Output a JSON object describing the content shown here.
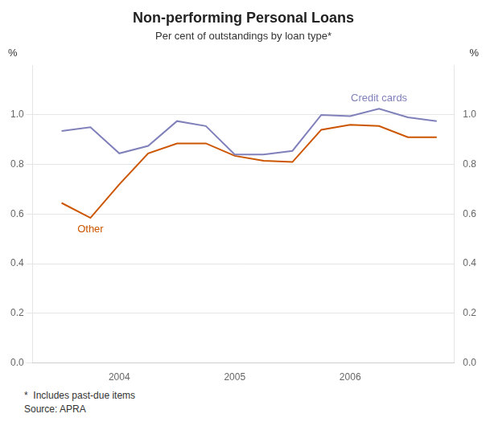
{
  "chart_data": {
    "type": "line",
    "title": "Non-performing Personal Loans",
    "subtitle": "Per cent of outstandings by loan type*",
    "footnotes": [
      "*  Includes past-due items",
      "Source: APRA"
    ],
    "y_label": "%",
    "y2_label": "%",
    "x": [
      2003.5,
      2003.75,
      2004.0,
      2004.25,
      2004.5,
      2004.75,
      2005.0,
      2005.25,
      2005.5,
      2005.75,
      2006.0,
      2006.25,
      2006.5,
      2006.75
    ],
    "series": [
      {
        "name": "Credit cards",
        "color": "#8080bb",
        "values": [
          0.935,
          0.95,
          0.845,
          0.875,
          0.975,
          0.955,
          0.84,
          0.84,
          0.855,
          1.0,
          0.995,
          1.025,
          0.99,
          0.975
        ]
      },
      {
        "name": "Other",
        "color": "#cc5500",
        "values": [
          0.645,
          0.585,
          0.72,
          0.845,
          0.885,
          0.885,
          0.835,
          0.815,
          0.81,
          0.94,
          0.96,
          0.955,
          0.91,
          0.91
        ]
      }
    ],
    "xlim": [
      2003.25,
      2006.9
    ],
    "xticks": [
      2004,
      2005,
      2006
    ],
    "ylim": [
      0.0,
      1.2
    ],
    "yticks": [
      {
        "value": 0.0,
        "label": "0.0"
      },
      0.2,
      0.4,
      0.6,
      0.8,
      {
        "value": 1.0,
        "label": "1.0"
      }
    ],
    "y2lim": [
      0.0,
      1.2
    ],
    "y2ticks": [
      {
        "value": 0.0,
        "label": "0.0"
      },
      0.2,
      0.4,
      0.6,
      0.8,
      {
        "value": 1.0,
        "label": "1.0"
      }
    ],
    "grid": "y",
    "legend": false
  }
}
